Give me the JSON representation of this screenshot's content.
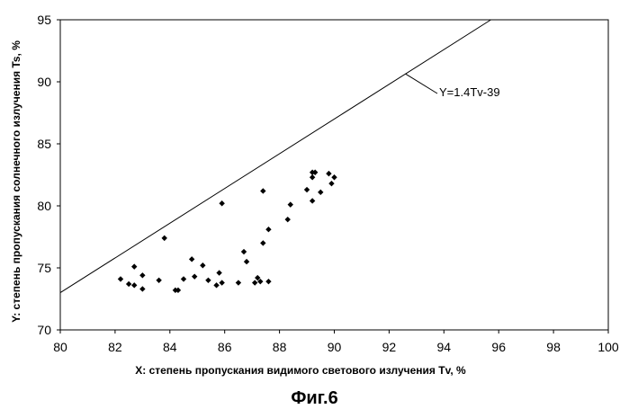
{
  "figure_caption": "Фиг.6",
  "chart_data": {
    "type": "scatter",
    "title": "",
    "xlabel": "X: степень пропускания видимого светового излучения Tv, %",
    "ylabel": "Y: степень пропускания солнечного излучения Ts, %",
    "xlim": [
      80,
      100
    ],
    "ylim": [
      70,
      95
    ],
    "x_ticks": [
      "80",
      "82",
      "84",
      "86",
      "88",
      "90",
      "92",
      "94",
      "96",
      "98",
      "100"
    ],
    "y_ticks": [
      "70",
      "75",
      "80",
      "85",
      "90",
      "95"
    ],
    "grid": false,
    "line": {
      "label": "Y=1.4Tv-39",
      "slope": 1.4,
      "intercept": -39
    },
    "series": [
      {
        "points": [
          [
            82.2,
            74.1
          ],
          [
            82.5,
            73.7
          ],
          [
            82.7,
            75.1
          ],
          [
            82.7,
            73.6
          ],
          [
            83.0,
            74.4
          ],
          [
            83.0,
            73.3
          ],
          [
            83.6,
            74.0
          ],
          [
            83.8,
            77.4
          ],
          [
            84.2,
            73.2
          ],
          [
            84.3,
            73.2
          ],
          [
            84.5,
            74.1
          ],
          [
            84.8,
            75.7
          ],
          [
            84.9,
            74.3
          ],
          [
            85.2,
            75.2
          ],
          [
            85.4,
            74.0
          ],
          [
            85.7,
            73.6
          ],
          [
            85.8,
            74.6
          ],
          [
            85.9,
            73.8
          ],
          [
            85.9,
            80.2
          ],
          [
            86.5,
            73.8
          ],
          [
            86.7,
            76.3
          ],
          [
            86.8,
            75.5
          ],
          [
            87.1,
            73.8
          ],
          [
            87.2,
            74.2
          ],
          [
            87.3,
            73.9
          ],
          [
            87.4,
            81.2
          ],
          [
            87.4,
            77.0
          ],
          [
            87.6,
            78.1
          ],
          [
            87.6,
            73.9
          ],
          [
            88.3,
            78.9
          ],
          [
            88.4,
            80.1
          ],
          [
            89.0,
            81.3
          ],
          [
            89.2,
            82.7
          ],
          [
            89.2,
            80.4
          ],
          [
            89.3,
            82.7
          ],
          [
            89.2,
            82.3
          ],
          [
            89.5,
            81.1
          ],
          [
            89.8,
            82.6
          ],
          [
            89.9,
            81.8
          ],
          [
            90.0,
            82.3
          ]
        ]
      }
    ]
  }
}
